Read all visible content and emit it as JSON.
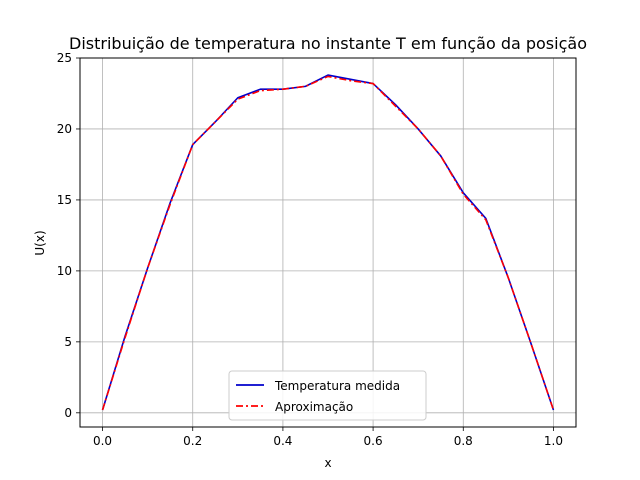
{
  "chart_data": {
    "type": "line",
    "title": "Distribuição de temperatura no instante T em função da posição",
    "xlabel": "x",
    "ylabel": "U(x)",
    "xlim": [
      -0.05,
      1.05
    ],
    "ylim": [
      -1.0,
      25.0
    ],
    "xticks": [
      0.0,
      0.2,
      0.4,
      0.6,
      0.8,
      1.0
    ],
    "xtick_labels": [
      "0.0",
      "0.2",
      "0.4",
      "0.6",
      "0.8",
      "1.0"
    ],
    "yticks": [
      0,
      5,
      10,
      15,
      20,
      25
    ],
    "ytick_labels": [
      "0",
      "5",
      "10",
      "15",
      "20",
      "25"
    ],
    "grid": true,
    "legend_position": "bottom-center",
    "series": [
      {
        "name": "Temperatura medida",
        "color": "#0000cc",
        "style": "solid",
        "x": [
          0.0,
          0.05,
          0.1,
          0.15,
          0.2,
          0.25,
          0.3,
          0.35,
          0.4,
          0.45,
          0.5,
          0.55,
          0.6,
          0.65,
          0.7,
          0.75,
          0.8,
          0.85,
          0.9,
          0.95,
          1.0
        ],
        "y": [
          0.2,
          5.4,
          10.2,
          14.8,
          18.9,
          20.5,
          22.2,
          22.8,
          22.8,
          23.0,
          23.8,
          23.5,
          23.2,
          21.7,
          20.0,
          18.1,
          15.5,
          13.7,
          9.5,
          4.9,
          0.2
        ]
      },
      {
        "name": "Aproximação",
        "color": "#ff0000",
        "style": "dashdot",
        "x": [
          0.0,
          0.05,
          0.1,
          0.15,
          0.2,
          0.25,
          0.3,
          0.35,
          0.4,
          0.45,
          0.5,
          0.55,
          0.6,
          0.65,
          0.7,
          0.75,
          0.8,
          0.85,
          0.9,
          0.95,
          1.0
        ],
        "y": [
          0.2,
          5.3,
          10.2,
          14.7,
          18.9,
          20.5,
          22.1,
          22.7,
          22.8,
          23.0,
          23.7,
          23.4,
          23.2,
          21.6,
          20.0,
          18.1,
          15.4,
          13.6,
          9.5,
          4.9,
          0.2
        ]
      }
    ]
  }
}
